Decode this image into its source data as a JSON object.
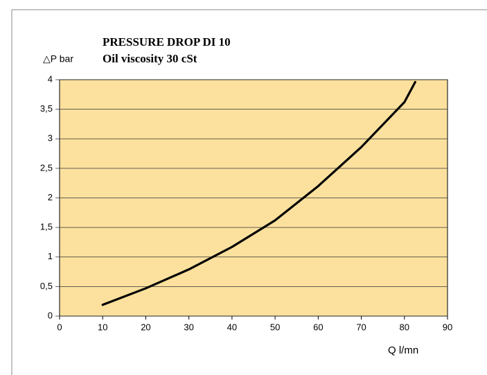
{
  "chart_data": {
    "type": "line",
    "title": "PRESSURE DROP DI 10",
    "subtitle": "Oil viscosity 30 cSt",
    "y_label": "△P bar",
    "x_label": "Q l/mn",
    "x": [
      10,
      20,
      30,
      40,
      50,
      60,
      70,
      80,
      82.5
    ],
    "series": [
      {
        "name": "Oil viscosity 30 cSt",
        "color": "#000000",
        "values": [
          0.19,
          0.47,
          0.79,
          1.17,
          1.62,
          2.2,
          2.86,
          3.62,
          3.96
        ]
      }
    ],
    "xlim": [
      0,
      90
    ],
    "xticks": [
      0,
      10,
      20,
      30,
      40,
      50,
      60,
      70,
      80,
      90
    ],
    "ylim": [
      0,
      4
    ],
    "yticks": [
      0,
      {
        "value": 0.5,
        "label": "0,5"
      },
      1,
      {
        "value": 1.5,
        "label": "1,5"
      },
      2,
      {
        "value": 2.5,
        "label": "2,5"
      },
      3,
      {
        "value": 3.5,
        "label": "3,5"
      },
      4
    ],
    "grid": true,
    "plot_background": "#fce19e"
  }
}
